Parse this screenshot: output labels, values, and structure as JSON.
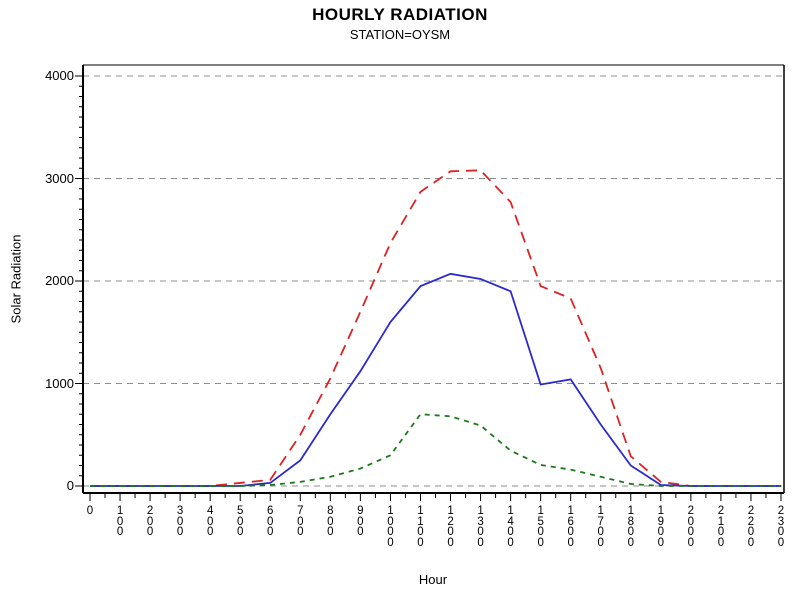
{
  "chart_data": {
    "type": "line",
    "title": "HOURLY RADIATION",
    "subtitle": "STATION=OYSM",
    "xlabel": "Hour",
    "ylabel": "Solar Radiation",
    "x_labels": [
      "0",
      "100",
      "200",
      "300",
      "400",
      "500",
      "600",
      "700",
      "800",
      "900",
      "1000",
      "1100",
      "1200",
      "1300",
      "1400",
      "1500",
      "1600",
      "1700",
      "1800",
      "1900",
      "2000",
      "2100",
      "2200",
      "2300"
    ],
    "y_ticks": [
      0,
      1000,
      2000,
      3000,
      4000
    ],
    "ylim": [
      0,
      4000
    ],
    "grid": "horizontal-dashed",
    "legend": "none",
    "frame": "box",
    "colors": {
      "background": "#ffffff",
      "axis": "#000000",
      "grid": "#8c8c8c",
      "text": "#000000"
    },
    "series": [
      {
        "name": "red-dashed-series",
        "color": "#dd2222",
        "dash": "long-dash",
        "values": [
          0,
          0,
          0,
          0,
          0,
          30,
          60,
          500,
          1050,
          1700,
          2370,
          2870,
          3070,
          3080,
          2770,
          1950,
          1830,
          1150,
          290,
          40,
          0,
          0,
          0,
          0
        ]
      },
      {
        "name": "blue-solid-series",
        "color": "#2a2acc",
        "dash": "solid",
        "values": [
          0,
          0,
          0,
          0,
          0,
          0,
          30,
          250,
          700,
          1120,
          1600,
          1950,
          2070,
          2020,
          1900,
          990,
          1040,
          600,
          200,
          10,
          0,
          0,
          0,
          0
        ]
      },
      {
        "name": "green-dashed-series",
        "color": "#1a7a1a",
        "dash": "short-dash",
        "values": [
          0,
          0,
          0,
          0,
          0,
          0,
          10,
          40,
          90,
          170,
          300,
          700,
          680,
          590,
          345,
          205,
          160,
          90,
          20,
          0,
          0,
          0,
          0,
          0
        ]
      }
    ]
  }
}
